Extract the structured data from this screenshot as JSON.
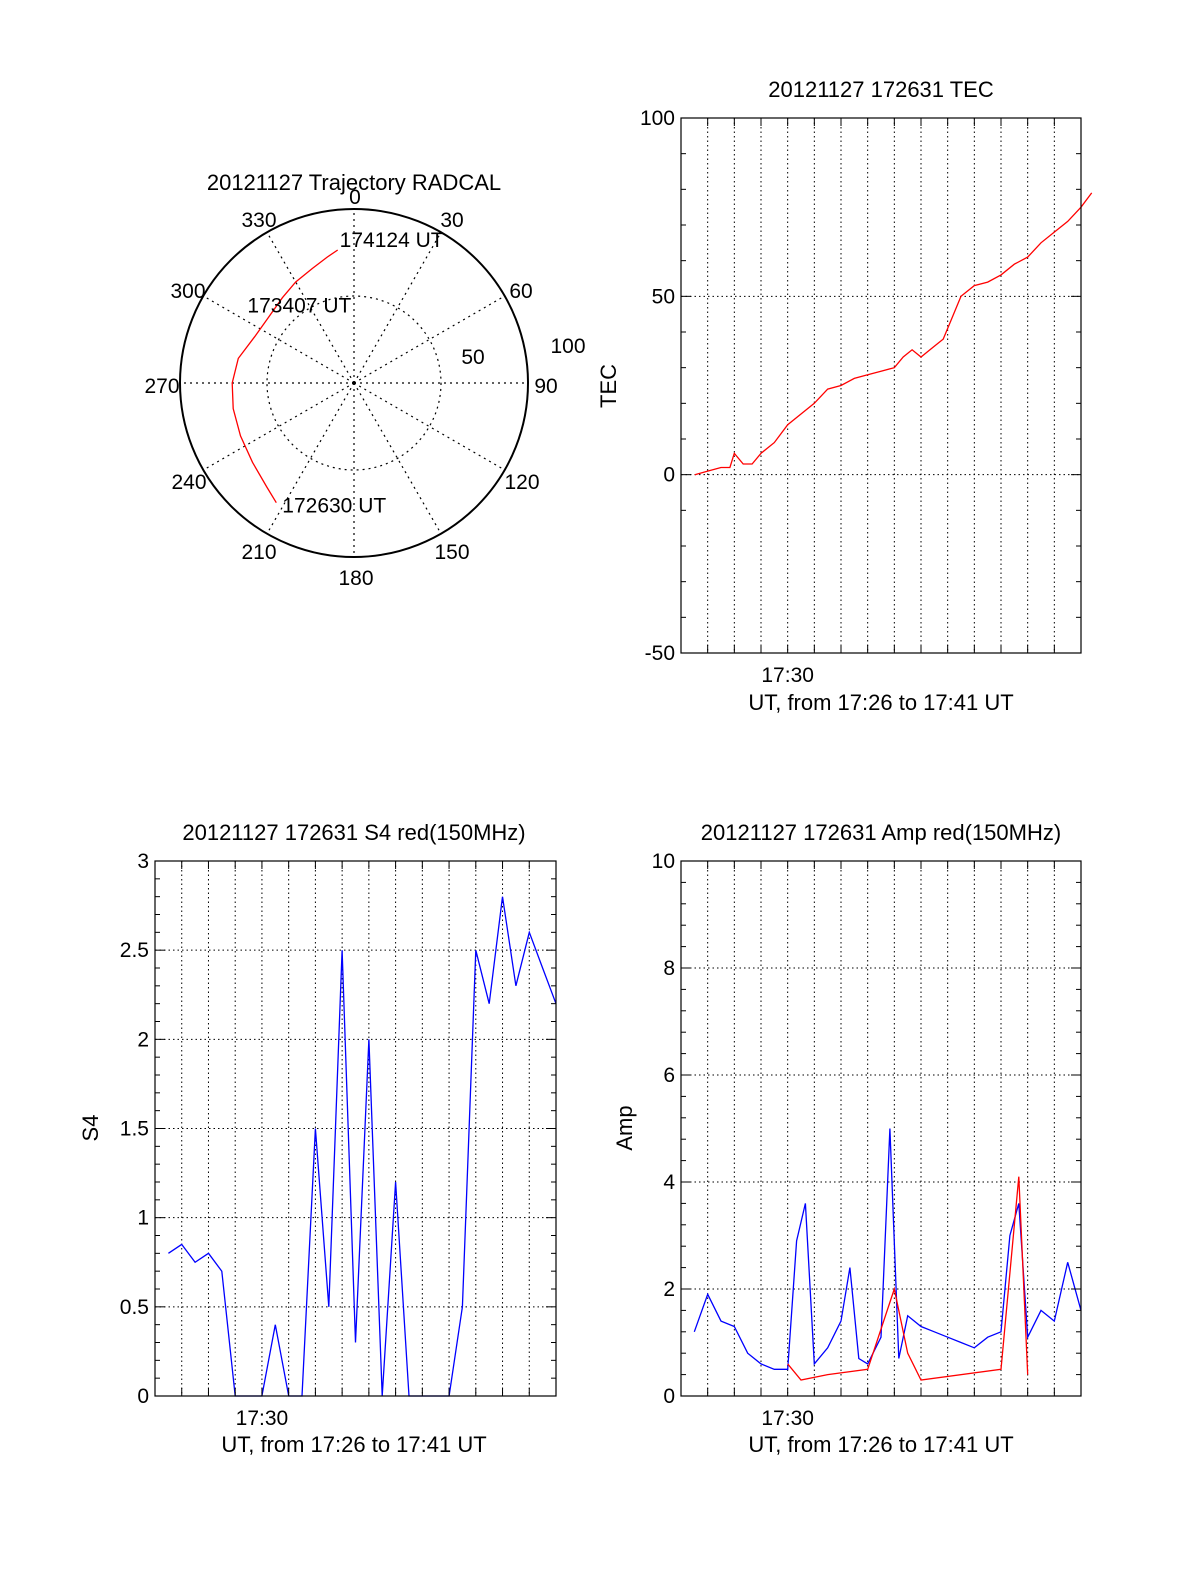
{
  "colors": {
    "red": "#ff0000",
    "blue": "#0000ff",
    "axis": "#000000",
    "grid": "#000000"
  },
  "chart_data": [
    {
      "type": "polar",
      "title": "20121127 Trajectory RADCAL",
      "angle_labels": [
        "0",
        "30",
        "60",
        "90",
        "120",
        "150",
        "180",
        "210",
        "240",
        "270",
        "300",
        "330"
      ],
      "radial_labels": [
        "50",
        "100"
      ],
      "trajectory": {
        "points": [
          {
            "az": 213,
            "r": 82
          },
          {
            "az": 220,
            "r": 78
          },
          {
            "az": 232,
            "r": 74
          },
          {
            "az": 245,
            "r": 72
          },
          {
            "az": 258,
            "r": 71
          },
          {
            "az": 270,
            "r": 70
          },
          {
            "az": 282,
            "r": 68
          },
          {
            "az": 295,
            "r": 63
          },
          {
            "az": 308,
            "r": 62
          },
          {
            "az": 320,
            "r": 64
          },
          {
            "az": 330,
            "r": 67
          },
          {
            "az": 340,
            "r": 70
          },
          {
            "az": 348,
            "r": 74
          },
          {
            "az": 353,
            "r": 77
          }
        ]
      },
      "annotations": [
        {
          "text": "172630 UT",
          "az": 213,
          "r": 82
        },
        {
          "text": "173407 UT",
          "az": 289,
          "r": 66
        },
        {
          "text": "174124 UT",
          "az": 353,
          "r": 77
        }
      ]
    },
    {
      "type": "line",
      "title": "20121127 172631 TEC",
      "ylabel": "TEC",
      "xlabel": "UT, from 17:26 to 17:41 UT",
      "x_range": [
        "17:26",
        "17:41"
      ],
      "xticks": [
        "17:30"
      ],
      "ylim": [
        -50,
        100
      ],
      "yticks": [
        "-50",
        "0",
        "50",
        "100"
      ],
      "grid": true,
      "series": [
        {
          "color": "#ff0000",
          "x": [
            "17:26:31",
            "17:27:00",
            "17:27:30",
            "17:27:50",
            "17:28:00",
            "17:28:20",
            "17:28:40",
            "17:29:00",
            "17:29:30",
            "17:30:00",
            "17:30:30",
            "17:31:00",
            "17:31:30",
            "17:32:00",
            "17:32:30",
            "17:33:00",
            "17:33:30",
            "17:34:00",
            "17:34:20",
            "17:34:40",
            "17:35:00",
            "17:35:30",
            "17:35:50",
            "17:36:10",
            "17:36:30",
            "17:37:00",
            "17:37:30",
            "17:38:00",
            "17:38:30",
            "17:39:00",
            "17:39:30",
            "17:40:00",
            "17:40:30",
            "17:41:00",
            "17:41:24"
          ],
          "values": [
            0,
            1,
            2,
            2,
            6,
            3,
            3,
            6,
            9,
            14,
            17,
            20,
            24,
            25,
            27,
            28,
            29,
            30,
            33,
            35,
            33,
            36,
            38,
            44,
            50,
            53,
            54,
            56,
            59,
            61,
            65,
            68,
            71,
            75,
            79
          ]
        }
      ]
    },
    {
      "type": "line",
      "title": "20121127 172631 S4 red(150MHz)",
      "ylabel": "S4",
      "xlabel": "UT, from 17:26 to 17:41 UT",
      "x_range": [
        "17:26",
        "17:41"
      ],
      "xticks": [
        "17:30"
      ],
      "ylim": [
        0,
        3
      ],
      "yticks": [
        "0",
        "0.5",
        "1",
        "1.5",
        "2",
        "2.5",
        "3"
      ],
      "grid": true,
      "series": [
        {
          "color": "#0000ff",
          "x": [
            "17:26:30",
            "17:27:00",
            "17:27:30",
            "17:28:00",
            "17:28:30",
            "17:29:00",
            "17:29:30",
            "17:30:00",
            "17:30:30",
            "17:31:00",
            "17:31:30",
            "17:32:00",
            "17:32:30",
            "17:33:00",
            "17:33:30",
            "17:34:00",
            "17:34:30",
            "17:35:00",
            "17:35:30",
            "17:36:00",
            "17:36:30",
            "17:37:00",
            "17:37:30",
            "17:38:00",
            "17:38:30",
            "17:39:00",
            "17:39:30",
            "17:40:00",
            "17:40:30",
            "17:41:00"
          ],
          "values": [
            0.8,
            0.85,
            0.75,
            0.8,
            0.7,
            0.0,
            0.0,
            0.0,
            0.4,
            0.0,
            0.0,
            1.5,
            0.5,
            2.5,
            0.3,
            2.0,
            0.0,
            1.2,
            0.0,
            0.0,
            0.0,
            0.0,
            0.5,
            2.5,
            2.2,
            2.8,
            2.3,
            2.6,
            2.4,
            2.2
          ]
        }
      ]
    },
    {
      "type": "line",
      "title": "20121127 172631 Amp red(150MHz)",
      "ylabel": "Amp",
      "xlabel": "UT, from 17:26 to 17:41 UT",
      "x_range": [
        "17:26",
        "17:41"
      ],
      "xticks": [
        "17:30"
      ],
      "ylim": [
        0,
        10
      ],
      "yticks": [
        "0",
        "2",
        "4",
        "6",
        "8",
        "10"
      ],
      "grid": true,
      "series": [
        {
          "color": "#0000ff",
          "x": [
            "17:26:30",
            "17:27:00",
            "17:27:30",
            "17:28:00",
            "17:28:30",
            "17:29:00",
            "17:29:30",
            "17:30:00",
            "17:30:20",
            "17:30:40",
            "17:31:00",
            "17:31:30",
            "17:32:00",
            "17:32:20",
            "17:32:40",
            "17:33:00",
            "17:33:30",
            "17:33:50",
            "17:34:10",
            "17:34:30",
            "17:35:00",
            "17:35:30",
            "17:36:00",
            "17:36:30",
            "17:37:00",
            "17:37:30",
            "17:38:00",
            "17:38:20",
            "17:38:40",
            "17:39:00",
            "17:39:30",
            "17:40:00",
            "17:40:30",
            "17:41:00"
          ],
          "values": [
            1.2,
            1.9,
            1.4,
            1.3,
            0.8,
            0.6,
            0.5,
            0.5,
            2.9,
            3.6,
            0.6,
            0.9,
            1.4,
            2.4,
            0.7,
            0.6,
            1.1,
            5.0,
            0.7,
            1.5,
            1.3,
            1.2,
            1.1,
            1.0,
            0.9,
            1.1,
            1.2,
            3.0,
            3.6,
            1.1,
            1.6,
            1.4,
            2.5,
            1.6
          ]
        },
        {
          "color": "#ff0000",
          "x": [
            "17:30:00",
            "17:30:30",
            "17:31:30",
            "17:33:00",
            "17:34:00",
            "17:34:30",
            "17:35:00",
            "17:38:00",
            "17:38:40",
            "17:39:00"
          ],
          "values": [
            0.6,
            0.3,
            0.4,
            0.5,
            2.0,
            0.8,
            0.3,
            0.5,
            4.1,
            0.4
          ]
        }
      ]
    }
  ]
}
